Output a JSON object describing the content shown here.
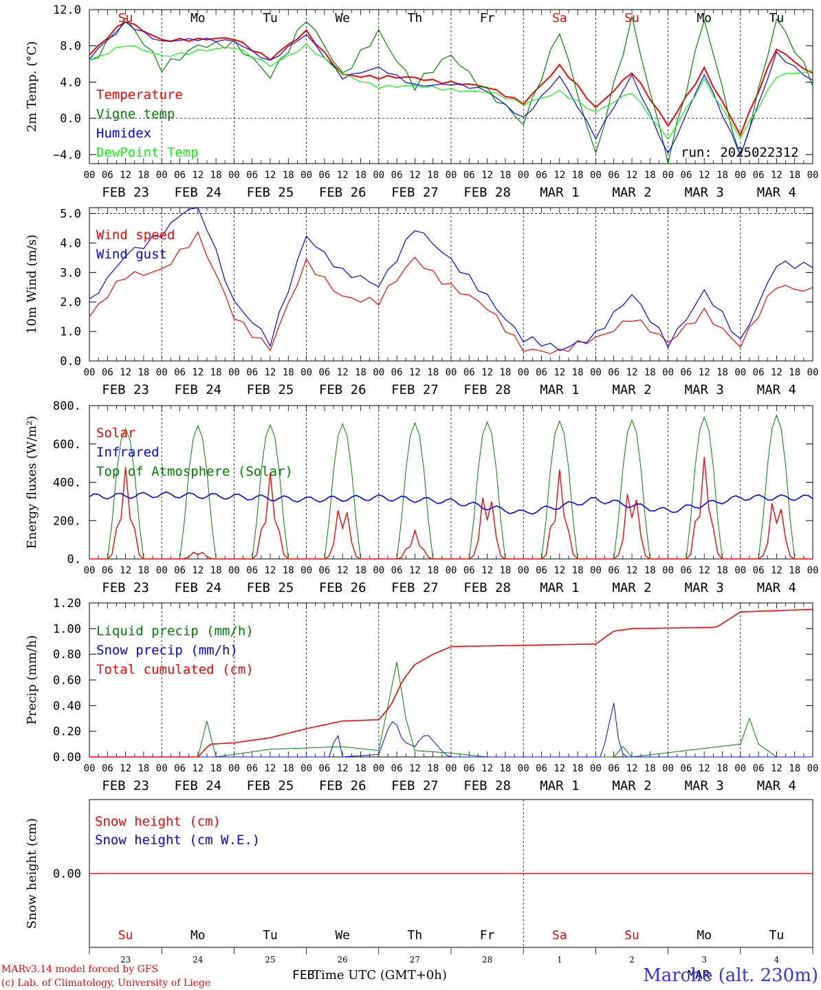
{
  "station": "Marche (alt. 230m)",
  "run_label": "run: 2025022312",
  "credits": [
    "MARv3.14 model forced by GFS",
    "(c) Lab. of Climatology, University of Liege"
  ],
  "bottom_month_labels": [
    "FEB",
    "MAR"
  ],
  "x_axis_label": "Time UTC (GMT+0h)",
  "hour_ticks": [
    "00",
    "06",
    "12",
    "18"
  ],
  "date_labels": [
    "FEB 23",
    "FEB 24",
    "FEB 25",
    "FEB 26",
    "FEB 27",
    "FEB 28",
    "MAR  1",
    "MAR  2",
    "MAR  3",
    "MAR  4"
  ],
  "day_names": [
    "Su",
    "Mo",
    "Tu",
    "We",
    "Th",
    "Fr",
    "Sa",
    "Su",
    "Mo",
    "Tu"
  ],
  "day_numbers": [
    "23",
    "24",
    "25",
    "26",
    "27",
    "28",
    "1",
    "2",
    "3",
    "4"
  ],
  "weekend_color": "#ff0000",
  "weekday_color": "#000000",
  "chart_data": [
    {
      "id": "temp",
      "type": "line",
      "ylabel": "2m Temp. (°C)",
      "ylim": [
        -5,
        12
      ],
      "ytick_values": [
        -4,
        0,
        4,
        8,
        12
      ],
      "ytick_labels": [
        "−4.0",
        "0.0",
        "4.0",
        "8.0",
        "12.0"
      ],
      "dashed_y": [
        0
      ],
      "x_hours": [
        0,
        12,
        24,
        36,
        48,
        60,
        72,
        84,
        96,
        108,
        120,
        132,
        144,
        156,
        168,
        180,
        192,
        204,
        216,
        228,
        240
      ],
      "series": [
        {
          "name": "Temperature",
          "color": "#ff0000",
          "values": [
            7.0,
            10.8,
            8.8,
            8.6,
            8.8,
            6.5,
            9.5,
            5.0,
            4.5,
            4.5,
            3.9,
            3.3,
            1.8,
            5.8,
            1.2,
            5.2,
            -1.0,
            5.5,
            -1.8,
            7.8,
            5.0
          ]
        },
        {
          "name": "Vigne temp",
          "color": "#008000",
          "values": [
            6.0,
            11.0,
            5.5,
            8.5,
            8.0,
            4.5,
            11.0,
            4.5,
            10.0,
            3.5,
            7.0,
            3.0,
            -1.0,
            10.0,
            -4.0,
            11.0,
            -4.5,
            10.5,
            -4.5,
            11.0,
            4.0
          ]
        },
        {
          "name": "Humidex",
          "color": "#0000ff",
          "values": [
            6.5,
            10.5,
            8.5,
            8.7,
            8.7,
            6.2,
            9.2,
            4.5,
            5.5,
            3.8,
            3.8,
            3.0,
            0.0,
            4.5,
            -2.0,
            4.8,
            -4.0,
            5.0,
            -4.2,
            7.2,
            4.2
          ]
        },
        {
          "name": "DewPoint Temp",
          "color": "#00ff00",
          "values": [
            6.5,
            8.0,
            6.8,
            7.5,
            7.8,
            6.0,
            8.0,
            4.8,
            3.5,
            3.5,
            3.3,
            3.0,
            1.5,
            3.0,
            0.5,
            3.0,
            -2.2,
            4.2,
            -2.0,
            4.5,
            5.2
          ]
        }
      ]
    },
    {
      "id": "wind",
      "type": "line",
      "ylabel": "10m Wind (m/s)",
      "ylim": [
        0,
        5.2
      ],
      "ytick_values": [
        0,
        1,
        2,
        3,
        4,
        5
      ],
      "ytick_labels": [
        "0.0",
        "1.0",
        "2.0",
        "3.0",
        "4.0",
        "5.0"
      ],
      "dashed_y": [
        5
      ],
      "x_hours": [
        0,
        12,
        24,
        36,
        48,
        60,
        72,
        84,
        96,
        108,
        120,
        132,
        144,
        156,
        168,
        180,
        192,
        204,
        216,
        228,
        240
      ],
      "series": [
        {
          "name": "Wind speed",
          "color": "#ff0000",
          "values": [
            1.5,
            2.9,
            3.2,
            4.2,
            1.5,
            0.4,
            3.3,
            2.3,
            2.0,
            3.5,
            2.5,
            1.7,
            0.5,
            0.3,
            0.8,
            1.5,
            0.5,
            1.7,
            0.5,
            2.6,
            2.5
          ]
        },
        {
          "name": "Wind gust",
          "color": "#0000ff",
          "values": [
            1.9,
            3.7,
            4.3,
            5.5,
            2.0,
            0.5,
            4.3,
            3.0,
            2.6,
            4.6,
            3.3,
            2.2,
            0.7,
            0.4,
            1.0,
            2.2,
            0.6,
            2.3,
            0.6,
            3.4,
            3.2
          ]
        }
      ]
    },
    {
      "id": "energy",
      "type": "line",
      "ylabel": "Energy fluxes (W/m²)",
      "ylim": [
        0,
        800
      ],
      "ytick_values": [
        0,
        200,
        400,
        600,
        800
      ],
      "ytick_labels": [
        "0.",
        "200.",
        "400.",
        "600.",
        "800."
      ],
      "dashed_y": [],
      "legend": [
        "Solar",
        "Infrared",
        "Top of Atmosphere (Solar)"
      ],
      "legend_colors": [
        "#ff0000",
        "#0000ff",
        "#008000"
      ],
      "toa_peaks": [
        680,
        695,
        700,
        705,
        710,
        715,
        720,
        725,
        740,
        750
      ],
      "solar_peaks": [
        480,
        45,
        450,
        320,
        150,
        400,
        470,
        420,
        540,
        360
      ],
      "infrared_level": [
        325,
        335,
        325,
        310,
        320,
        300,
        240,
        310,
        250,
        320
      ],
      "x_hours": [
        0,
        24,
        48,
        72,
        96,
        120,
        144,
        168,
        192,
        216,
        240
      ]
    },
    {
      "id": "precip",
      "type": "line",
      "ylabel": "Precip (mm/h)",
      "ylim": [
        0,
        1.2
      ],
      "ytick_values": [
        0,
        0.2,
        0.4,
        0.6,
        0.8,
        1.0,
        1.2
      ],
      "ytick_labels": [
        "0.00",
        "0.20",
        "0.40",
        "0.60",
        "0.80",
        "1.00",
        "1.20"
      ],
      "dashed_y": [],
      "series": [
        {
          "name": "Liquid precip (mm/h)",
          "color": "#008000",
          "x_hours": [
            0,
            36,
            39,
            42,
            60,
            84,
            96,
            102,
            105,
            108,
            120,
            132,
            174,
            177,
            180,
            216,
            219,
            222,
            228
          ],
          "values": [
            0.0,
            0.0,
            0.28,
            0.0,
            0.06,
            0.08,
            0.05,
            0.74,
            0.3,
            0.05,
            0.03,
            0.0,
            0.0,
            0.08,
            0.0,
            0.1,
            0.3,
            0.1,
            0.0
          ]
        },
        {
          "name": "Snow precip (mm/h)",
          "color": "#0000ff",
          "x_hours": [
            0,
            80,
            82,
            84,
            96,
            100,
            102,
            104,
            108,
            110,
            112,
            118,
            120,
            170,
            174,
            176,
            178,
            182,
            240
          ],
          "values": [
            0.0,
            0.0,
            0.22,
            0.0,
            0.02,
            0.28,
            0.25,
            0.12,
            0.08,
            0.15,
            0.18,
            0.02,
            0.0,
            0.0,
            0.42,
            0.05,
            0.0,
            0.0,
            0.0
          ]
        },
        {
          "name": "Total cumulated (cm)",
          "color": "#ff0000",
          "x_hours": [
            0,
            36,
            40,
            48,
            60,
            72,
            84,
            96,
            100,
            104,
            108,
            114,
            120,
            168,
            174,
            180,
            208,
            216,
            240
          ],
          "values": [
            0.0,
            0.0,
            0.1,
            0.11,
            0.15,
            0.22,
            0.28,
            0.29,
            0.4,
            0.6,
            0.72,
            0.8,
            0.86,
            0.88,
            0.98,
            1.0,
            1.01,
            1.13,
            1.15
          ]
        }
      ]
    },
    {
      "id": "snow",
      "type": "line",
      "ylabel": "Snow height (cm)",
      "ylim": [
        -1,
        1
      ],
      "ytick_values": [
        0
      ],
      "ytick_labels": [
        "0.00"
      ],
      "dashed_y": [],
      "series": [
        {
          "name": "Snow height (cm)",
          "color": "#ff0000",
          "values": [
            0,
            0
          ]
        },
        {
          "name": "Snow height (cm W.E.)",
          "color": "#0000ff",
          "values": [
            0,
            0
          ]
        }
      ]
    }
  ]
}
